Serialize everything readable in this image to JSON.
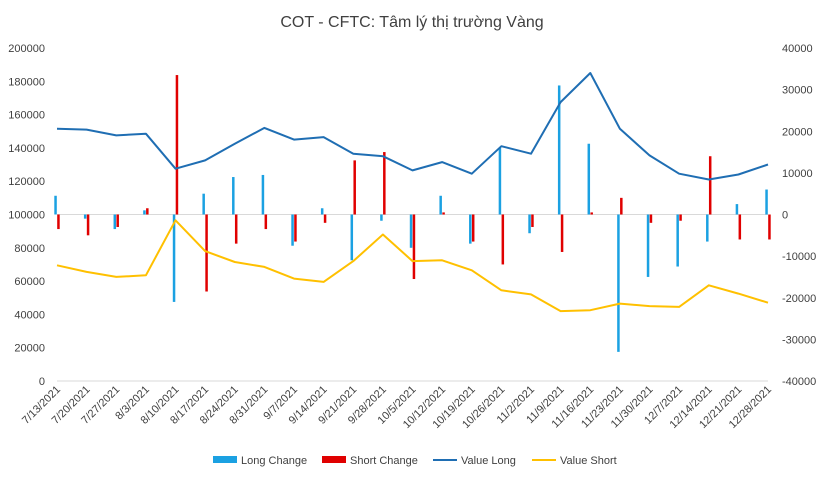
{
  "chart_data": {
    "type": "bar+line",
    "title": "COT - CFTC: Tâm lý thị trường Vàng",
    "categories": [
      "7/13/2021",
      "7/20/2021",
      "7/27/2021",
      "8/3/2021",
      "8/10/2021",
      "8/17/2021",
      "8/24/2021",
      "8/31/2021",
      "9/7/2021",
      "9/14/2021",
      "9/21/2021",
      "9/28/2021",
      "10/5/2021",
      "10/12/2021",
      "10/19/2021",
      "10/26/2021",
      "11/2/2021",
      "11/9/2021",
      "11/16/2021",
      "11/23/2021",
      "11/30/2021",
      "12/7/2021",
      "12/14/2021",
      "12/21/2021",
      "12/28/2021"
    ],
    "y_left": {
      "min": 0,
      "max": 200000,
      "ticks": [
        "0",
        "20000",
        "40000",
        "60000",
        "80000",
        "100000",
        "120000",
        "140000",
        "160000",
        "180000",
        "200000"
      ]
    },
    "y_right": {
      "min": -40000,
      "max": 40000,
      "ticks": [
        "-40000",
        "-30000",
        "-20000",
        "-10000",
        "0",
        "10000",
        "20000",
        "30000",
        "40000"
      ]
    },
    "series": [
      {
        "name": "Long Change",
        "kind": "bar",
        "axis": "right",
        "color": "#1BA1E2",
        "values": [
          4500,
          -1000,
          -3500,
          1000,
          -21000,
          5000,
          9000,
          9500,
          -7500,
          1500,
          -11000,
          -1500,
          -8000,
          4500,
          -7000,
          16000,
          -4500,
          31000,
          17000,
          -33000,
          -15000,
          -12500,
          -6500,
          2500,
          6000
        ]
      },
      {
        "name": "Short Change",
        "kind": "bar",
        "axis": "right",
        "color": "#E00000",
        "values": [
          -3500,
          -5000,
          -3000,
          1500,
          33500,
          -18500,
          -7000,
          -3500,
          -6500,
          -2000,
          13000,
          15000,
          -15500,
          500,
          -6500,
          -12000,
          -3000,
          -9000,
          500,
          4000,
          -2000,
          -1500,
          14000,
          -6000,
          -6000
        ]
      },
      {
        "name": "Value Long",
        "kind": "line",
        "axis": "left",
        "color": "#1F6EB3",
        "values": [
          151500,
          151000,
          147500,
          148500,
          127500,
          132500,
          142500,
          152000,
          145000,
          146500,
          136500,
          135000,
          126500,
          131500,
          124500,
          141000,
          136500,
          167500,
          185000,
          151500,
          135500,
          124500,
          121000,
          124000,
          130000
        ]
      },
      {
        "name": "Value Short",
        "kind": "line",
        "axis": "left",
        "color": "#FFC000",
        "values": [
          69500,
          65500,
          62500,
          63500,
          96500,
          78000,
          71500,
          68500,
          61500,
          59500,
          72000,
          88000,
          72000,
          72500,
          66500,
          54500,
          52000,
          42000,
          42500,
          46500,
          45000,
          44500,
          57500,
          52500,
          47000
        ]
      }
    ],
    "legend": "bottom",
    "grid": false
  }
}
